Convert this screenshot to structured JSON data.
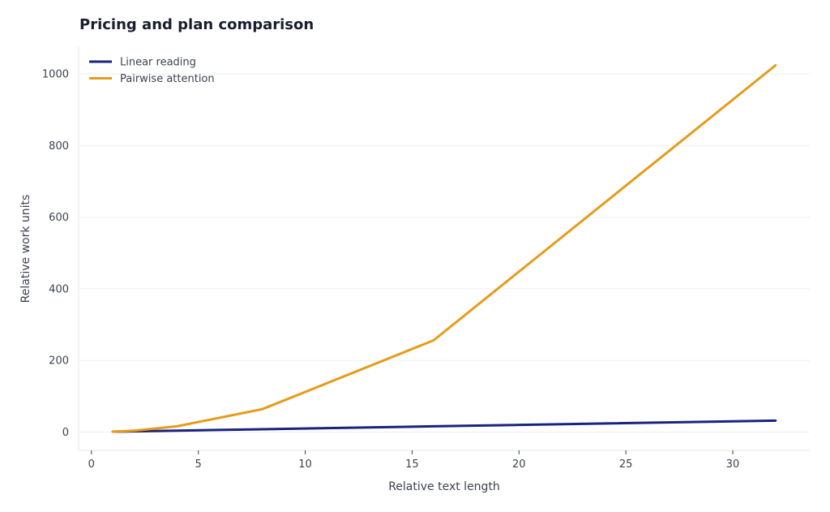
{
  "chart_data": {
    "type": "line",
    "title": "Pricing and plan comparison",
    "xlabel": "Relative text length",
    "ylabel": "Relative work units",
    "xlim": [
      -0.6,
      33.6
    ],
    "ylim": [
      -51,
      1075
    ],
    "xticks": [
      0,
      5,
      10,
      15,
      20,
      25,
      30
    ],
    "yticks": [
      0,
      200,
      400,
      600,
      800,
      1000
    ],
    "grid": "horizontal",
    "legend": "top-left",
    "series": [
      {
        "name": "Linear reading",
        "color": "#1a237e",
        "x": [
          1,
          2,
          4,
          8,
          16,
          32
        ],
        "y": [
          1,
          2,
          4,
          8,
          16,
          32
        ]
      },
      {
        "name": "Pairwise attention",
        "color": "#e69b1b",
        "x": [
          1,
          2,
          4,
          8,
          16,
          32
        ],
        "y": [
          1,
          4,
          16,
          64,
          256,
          1024
        ]
      }
    ]
  }
}
